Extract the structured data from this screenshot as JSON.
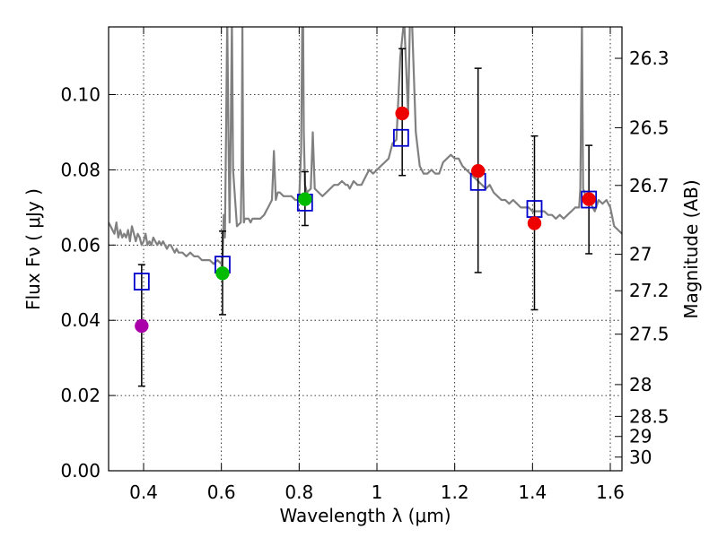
{
  "chart_data": {
    "type": "scatter",
    "title": "",
    "xlabel": "Wavelength  λ (μm)",
    "ylabel": "Flux  Fν  ( μJy )",
    "y2label": "Magnitude (AB)",
    "xlim": [
      0.31,
      1.63
    ],
    "ylim": [
      0.0,
      0.118
    ],
    "grid": true,
    "x_ticks": [
      {
        "value": 0.4,
        "label": "0.4"
      },
      {
        "value": 0.6,
        "label": "0.6"
      },
      {
        "value": 0.8,
        "label": "0.8"
      },
      {
        "value": 1.0,
        "label": "1"
      },
      {
        "value": 1.2,
        "label": "1.2"
      },
      {
        "value": 1.4,
        "label": "1.4"
      },
      {
        "value": 1.6,
        "label": "1.6"
      }
    ],
    "y_ticks": [
      {
        "value": 0.0,
        "label": "0.00"
      },
      {
        "value": 0.02,
        "label": "0.02"
      },
      {
        "value": 0.04,
        "label": "0.04"
      },
      {
        "value": 0.06,
        "label": "0.06"
      },
      {
        "value": 0.08,
        "label": "0.08"
      },
      {
        "value": 0.1,
        "label": "0.10"
      }
    ],
    "y2_ticks": [
      {
        "value": 26.3,
        "label": "26.3"
      },
      {
        "value": 26.5,
        "label": "26.5"
      },
      {
        "value": 26.7,
        "label": "26.7"
      },
      {
        "value": 27.0,
        "label": "27"
      },
      {
        "value": 27.2,
        "label": "27.2"
      },
      {
        "value": 27.5,
        "label": "27.5"
      },
      {
        "value": 28.0,
        "label": "28"
      },
      {
        "value": 28.5,
        "label": "28.5"
      },
      {
        "value": 29.0,
        "label": "29"
      },
      {
        "value": 30.0,
        "label": "30"
      }
    ],
    "series": [
      {
        "name": "model-spectrum",
        "kind": "line",
        "color": "#808080",
        "x": [
          0.31,
          0.315,
          0.32,
          0.325,
          0.33,
          0.335,
          0.34,
          0.345,
          0.35,
          0.355,
          0.36,
          0.365,
          0.37,
          0.375,
          0.38,
          0.385,
          0.39,
          0.395,
          0.4,
          0.405,
          0.41,
          0.415,
          0.42,
          0.425,
          0.43,
          0.435,
          0.44,
          0.445,
          0.45,
          0.455,
          0.46,
          0.465,
          0.47,
          0.475,
          0.48,
          0.485,
          0.49,
          0.495,
          0.5,
          0.51,
          0.52,
          0.53,
          0.54,
          0.55,
          0.56,
          0.57,
          0.58,
          0.59,
          0.6,
          0.603,
          0.606,
          0.609,
          0.612,
          0.615,
          0.618,
          0.621,
          0.624,
          0.627,
          0.63,
          0.64,
          0.65,
          0.652,
          0.654,
          0.656,
          0.658,
          0.66,
          0.665,
          0.67,
          0.675,
          0.68,
          0.69,
          0.7,
          0.71,
          0.72,
          0.73,
          0.735,
          0.74,
          0.745,
          0.75,
          0.76,
          0.77,
          0.78,
          0.79,
          0.8,
          0.805,
          0.808,
          0.81,
          0.812,
          0.815,
          0.82,
          0.83,
          0.835,
          0.84,
          0.85,
          0.86,
          0.87,
          0.88,
          0.89,
          0.9,
          0.91,
          0.92,
          0.925,
          0.93,
          0.94,
          0.95,
          0.96,
          0.97,
          0.98,
          0.99,
          1.0,
          1.01,
          1.02,
          1.03,
          1.04,
          1.05,
          1.06,
          1.07,
          1.08,
          1.085,
          1.09,
          1.1,
          1.11,
          1.12,
          1.13,
          1.14,
          1.15,
          1.16,
          1.17,
          1.18,
          1.19,
          1.2,
          1.21,
          1.22,
          1.23,
          1.24,
          1.25,
          1.26,
          1.27,
          1.28,
          1.29,
          1.3,
          1.31,
          1.32,
          1.33,
          1.34,
          1.35,
          1.36,
          1.37,
          1.38,
          1.39,
          1.4,
          1.41,
          1.42,
          1.43,
          1.44,
          1.45,
          1.46,
          1.47,
          1.48,
          1.49,
          1.5,
          1.51,
          1.52,
          1.523,
          1.527,
          1.53,
          1.54,
          1.55,
          1.56,
          1.57,
          1.58,
          1.59,
          1.6,
          1.61,
          1.62,
          1.63
        ],
        "y": [
          0.066,
          0.065,
          0.064,
          0.063,
          0.066,
          0.062,
          0.064,
          0.062,
          0.063,
          0.062,
          0.064,
          0.061,
          0.065,
          0.063,
          0.061,
          0.063,
          0.062,
          0.06,
          0.061,
          0.063,
          0.06,
          0.061,
          0.06,
          0.062,
          0.061,
          0.06,
          0.061,
          0.06,
          0.061,
          0.06,
          0.059,
          0.06,
          0.06,
          0.059,
          0.058,
          0.059,
          0.058,
          0.058,
          0.058,
          0.057,
          0.058,
          0.057,
          0.057,
          0.056,
          0.056,
          0.056,
          0.055,
          0.056,
          0.055,
          0.057,
          0.068,
          0.062,
          0.09,
          0.12,
          0.09,
          0.066,
          0.09,
          0.12,
          0.08,
          0.065,
          0.066,
          0.08,
          0.118,
          0.08,
          0.066,
          0.067,
          0.067,
          0.067,
          0.066,
          0.067,
          0.067,
          0.067,
          0.068,
          0.07,
          0.072,
          0.085,
          0.072,
          0.074,
          0.074,
          0.073,
          0.073,
          0.073,
          0.072,
          0.072,
          0.085,
          0.12,
          0.12,
          0.09,
          0.076,
          0.074,
          0.075,
          0.09,
          0.075,
          0.074,
          0.073,
          0.074,
          0.075,
          0.076,
          0.076,
          0.077,
          0.076,
          0.076,
          0.075,
          0.077,
          0.076,
          0.076,
          0.078,
          0.08,
          0.079,
          0.08,
          0.081,
          0.082,
          0.083,
          0.087,
          0.088,
          0.11,
          0.12,
          0.095,
          0.12,
          0.12,
          0.09,
          0.081,
          0.079,
          0.079,
          0.08,
          0.079,
          0.079,
          0.082,
          0.083,
          0.084,
          0.083,
          0.083,
          0.081,
          0.08,
          0.079,
          0.078,
          0.077,
          0.076,
          0.075,
          0.076,
          0.074,
          0.073,
          0.072,
          0.072,
          0.071,
          0.072,
          0.071,
          0.07,
          0.07,
          0.07,
          0.069,
          0.069,
          0.069,
          0.069,
          0.068,
          0.068,
          0.067,
          0.068,
          0.067,
          0.068,
          0.069,
          0.07,
          0.07,
          0.075,
          0.12,
          0.075,
          0.072,
          0.071,
          0.069,
          0.072,
          0.071,
          0.072,
          0.07,
          0.065,
          0.064,
          0.063
        ]
      },
      {
        "name": "model-photometry",
        "kind": "open-square",
        "color": "#0000cc",
        "x": [
          0.395,
          0.603,
          0.815,
          1.062,
          1.26,
          1.405,
          1.545
        ],
        "y": [
          0.0503,
          0.0548,
          0.0713,
          0.0885,
          0.0768,
          0.0696,
          0.0721
        ]
      },
      {
        "name": "observed-photometry",
        "kind": "filled-circle",
        "x": [
          0.395,
          0.603,
          0.815,
          1.065,
          1.26,
          1.405,
          1.545
        ],
        "y": [
          0.0385,
          0.0525,
          0.0722,
          0.095,
          0.0797,
          0.0658,
          0.0722
        ],
        "colors": [
          "#aa00aa",
          "#00bb00",
          "#00bb00",
          "#ee0000",
          "#ee0000",
          "#ee0000",
          "#ee0000"
        ],
        "yerr_low": [
          0.0225,
          0.0415,
          0.0652,
          0.0785,
          0.0527,
          0.0428,
          0.0577
        ],
        "yerr_high": [
          0.0548,
          0.0637,
          0.0795,
          0.1122,
          0.107,
          0.089,
          0.0865
        ]
      }
    ]
  }
}
